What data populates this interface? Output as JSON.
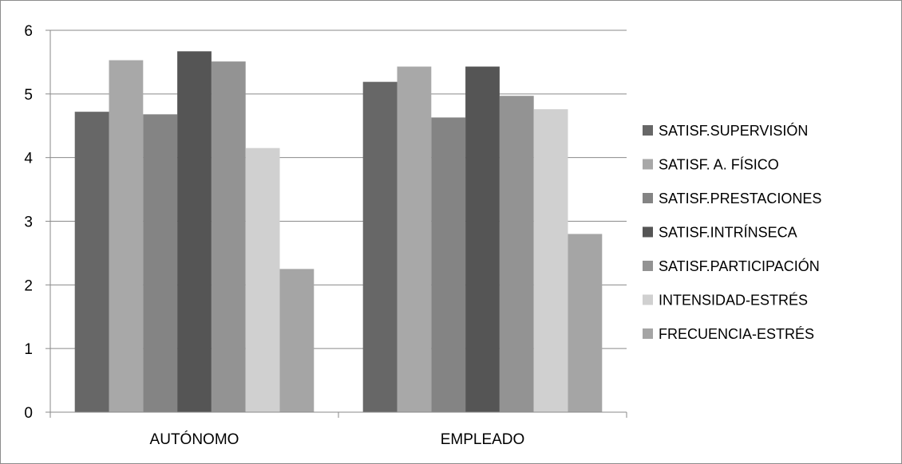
{
  "chart_data": {
    "type": "bar",
    "title": "",
    "xlabel": "",
    "ylabel": "",
    "categories": [
      "AUTÓNOMO",
      "EMPLEADO"
    ],
    "ylim": [
      0,
      6
    ],
    "yticks": [
      0,
      1,
      2,
      3,
      4,
      5,
      6
    ],
    "grid": true,
    "legend_position": "right",
    "series": [
      {
        "name": "SATISF.SUPERVISIÓN",
        "values": [
          4.72,
          5.19
        ],
        "color": "#676767"
      },
      {
        "name": "SATISF. A. FÍSICO",
        "values": [
          5.53,
          5.43
        ],
        "color": "#a8a8a8"
      },
      {
        "name": "SATISF.PRESTACIONES",
        "values": [
          4.68,
          4.63
        ],
        "color": "#848484"
      },
      {
        "name": "SATISF.INTRÍNSECA",
        "values": [
          5.67,
          5.43
        ],
        "color": "#555555"
      },
      {
        "name": "SATISF.PARTICIPACIÓN",
        "values": [
          5.51,
          4.97
        ],
        "color": "#939393"
      },
      {
        "name": "INTENSIDAD-ESTRÉS",
        "values": [
          4.15,
          4.76
        ],
        "color": "#d0d0d0"
      },
      {
        "name": "FRECUENCIA-ESTRÉS",
        "values": [
          2.25,
          2.8
        ],
        "color": "#a5a5a5"
      }
    ]
  }
}
